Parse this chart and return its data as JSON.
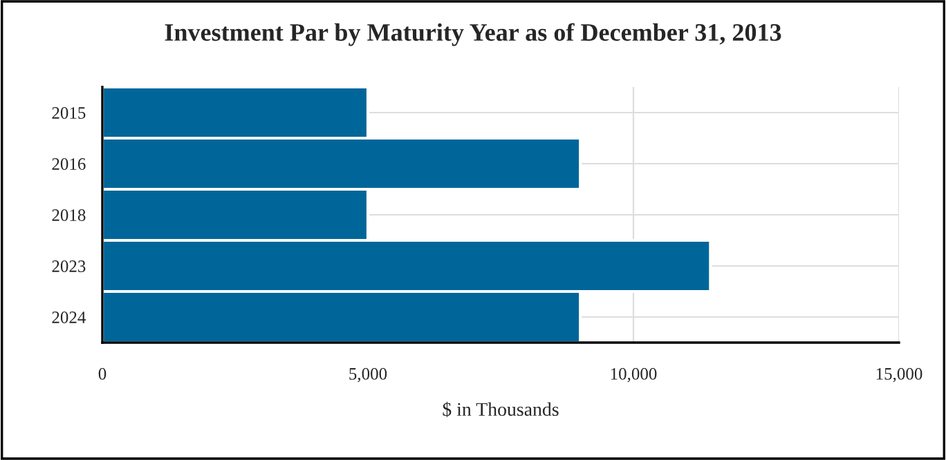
{
  "chart_data": {
    "type": "bar",
    "orientation": "horizontal",
    "title": "Investment Par by Maturity Year as of December 31, 2013",
    "xlabel": "$ in Thousands",
    "categories": [
      "2015",
      "2016",
      "2018",
      "2023",
      "2024"
    ],
    "values": [
      5000,
      9000,
      5000,
      11450,
      9000
    ],
    "color": "#006699",
    "xlim": [
      0,
      15000
    ],
    "xticks": [
      {
        "value": 0,
        "label": "0"
      },
      {
        "value": 5000,
        "label": "5,000"
      },
      {
        "value": 10000,
        "label": "10,000"
      },
      {
        "value": 15000,
        "label": "15,000"
      }
    ],
    "grid": true
  }
}
